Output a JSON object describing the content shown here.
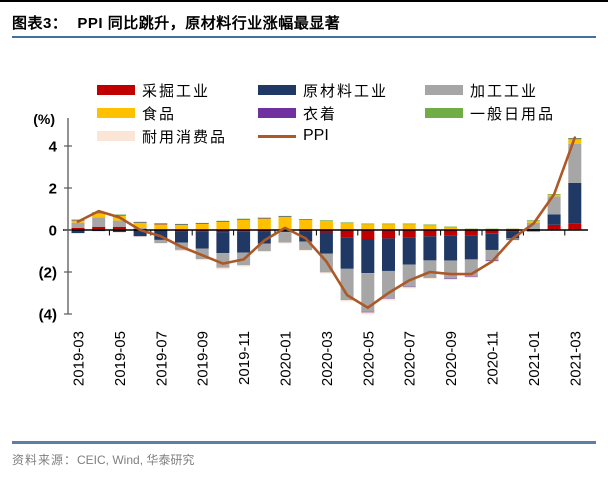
{
  "header": {
    "figure_label": "图表3：",
    "title": "PPI 同比跳升，原材料行业涨幅最显著"
  },
  "footer": {
    "source_label": "资料来源：",
    "source_text": "CEIC, Wind,  华泰研究"
  },
  "colors": {
    "title_rule": "#41719C",
    "footer_rule": "#5B7FA6",
    "axis": "#595959",
    "zero_axis": "#000000",
    "ppi_line": "#AC5827"
  },
  "chart_data": {
    "type": "bar",
    "subtype": "stacked-bar-with-line-overlay",
    "title": "",
    "unit_label": "(%)",
    "xlabel": "",
    "ylabel": "",
    "ylim": [
      -4,
      4
    ],
    "grid": false,
    "legend_position": "top",
    "y_ticks": [
      {
        "value": 4,
        "label": "4"
      },
      {
        "value": 2,
        "label": "2"
      },
      {
        "value": 0,
        "label": "0"
      },
      {
        "value": -2,
        "label": "(2)"
      },
      {
        "value": -4,
        "label": "(4)"
      }
    ],
    "x_tick_step": 2,
    "categories": [
      "2019-03",
      "2019-04",
      "2019-05",
      "2019-06",
      "2019-07",
      "2019-08",
      "2019-09",
      "2019-10",
      "2019-11",
      "2019-12",
      "2020-01",
      "2020-02",
      "2020-03",
      "2020-04",
      "2020-05",
      "2020-06",
      "2020-07",
      "2020-08",
      "2020-09",
      "2020-10",
      "2020-11",
      "2020-12",
      "2021-01",
      "2021-02",
      "2021-03"
    ],
    "series": [
      {
        "name": "采掘工业",
        "color": "#C00000",
        "values": [
          0.1,
          0.15,
          0.15,
          0.05,
          -0.02,
          -0.05,
          -0.08,
          -0.1,
          -0.08,
          -0.05,
          0.03,
          -0.05,
          -0.12,
          -0.35,
          -0.45,
          -0.4,
          -0.35,
          -0.3,
          -0.25,
          -0.25,
          -0.15,
          -0.05,
          0.05,
          0.25,
          0.3
        ]
      },
      {
        "name": "原材料工业",
        "color": "#1F3864",
        "values": [
          -0.15,
          -0.05,
          -0.1,
          -0.3,
          -0.45,
          -0.55,
          -0.8,
          -1.0,
          -1.0,
          -0.6,
          -0.1,
          -0.5,
          -1.0,
          -1.5,
          -1.6,
          -1.55,
          -1.3,
          -1.15,
          -1.2,
          -1.15,
          -0.8,
          -0.35,
          -0.05,
          0.5,
          1.95
        ]
      },
      {
        "name": "加工工业",
        "color": "#A6A6A6",
        "values": [
          0.25,
          0.45,
          0.3,
          0.05,
          -0.15,
          -0.35,
          -0.5,
          -0.7,
          -0.6,
          -0.35,
          -0.5,
          -0.4,
          -0.9,
          -1.45,
          -1.85,
          -1.3,
          -1.05,
          -0.8,
          -0.85,
          -0.8,
          -0.5,
          -0.05,
          0.3,
          0.85,
          1.85
        ]
      },
      {
        "name": "食品",
        "color": "#FFC000",
        "values": [
          0.1,
          0.2,
          0.25,
          0.25,
          0.28,
          0.25,
          0.3,
          0.4,
          0.5,
          0.55,
          0.6,
          0.5,
          0.45,
          0.35,
          0.3,
          0.3,
          0.3,
          0.25,
          0.15,
          0.05,
          0.05,
          0.05,
          0.1,
          0.1,
          0.25
        ]
      },
      {
        "name": "衣着",
        "color": "#7030A0",
        "values": [
          0.03,
          0.03,
          0.02,
          0.02,
          0.02,
          0.02,
          0.02,
          0.02,
          0.02,
          0.02,
          0.02,
          0.01,
          0.0,
          -0.02,
          -0.02,
          -0.02,
          -0.02,
          -0.02,
          -0.03,
          -0.03,
          -0.03,
          -0.02,
          -0.02,
          -0.01,
          0.01
        ]
      },
      {
        "name": "一般日用品",
        "color": "#70AD47",
        "values": [
          0.02,
          0.02,
          0.02,
          0.02,
          0.03,
          0.02,
          0.02,
          0.02,
          0.02,
          0.02,
          0.02,
          0.01,
          0.01,
          0.01,
          0.01,
          0.01,
          0.01,
          0.01,
          0.01,
          0.01,
          0.01,
          0.01,
          0.01,
          0.01,
          0.02
        ]
      },
      {
        "name": "耐用消费品",
        "color": "#FBE5D6",
        "values": [
          -0.02,
          -0.02,
          -0.03,
          -0.04,
          -0.04,
          -0.05,
          -0.06,
          -0.07,
          -0.06,
          -0.05,
          -0.04,
          -0.04,
          -0.05,
          -0.08,
          -0.1,
          -0.08,
          -0.06,
          -0.05,
          -0.05,
          -0.05,
          -0.05,
          -0.03,
          -0.03,
          -0.02,
          -0.02
        ]
      }
    ],
    "line_series": {
      "name": "PPI",
      "color": "#AC5827",
      "values": [
        0.4,
        0.9,
        0.6,
        0.0,
        -0.3,
        -0.8,
        -1.2,
        -1.6,
        -1.4,
        -0.5,
        0.1,
        -0.4,
        -1.5,
        -3.1,
        -3.7,
        -3.0,
        -2.4,
        -2.0,
        -2.1,
        -2.1,
        -1.5,
        -0.4,
        0.3,
        1.7,
        4.4
      ]
    }
  }
}
